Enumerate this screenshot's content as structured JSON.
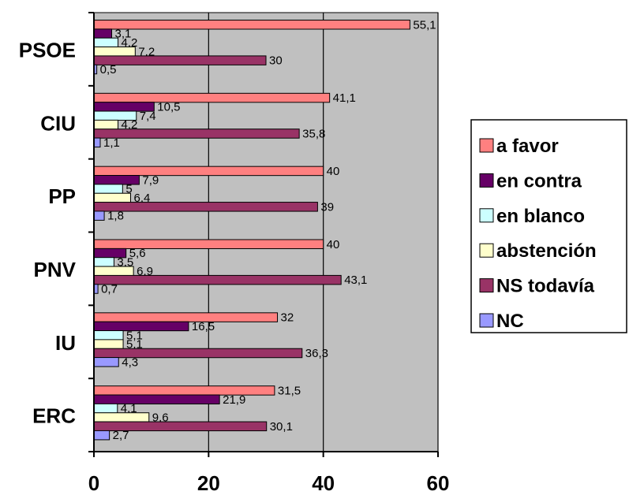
{
  "chart_data": {
    "type": "bar",
    "orientation": "horizontal",
    "categories": [
      "PSOE",
      "CIU",
      "PP",
      "PNV",
      "IU",
      "ERC"
    ],
    "series": [
      {
        "name": "a favor",
        "color": "#ff8080",
        "values": [
          55.1,
          41.1,
          40,
          40,
          32,
          31.5
        ],
        "labels": [
          "55,1",
          "41,1",
          "40",
          "40",
          "32",
          "31,5"
        ]
      },
      {
        "name": "en contra",
        "color": "#660066",
        "values": [
          3.1,
          10.5,
          7.9,
          5.6,
          16.5,
          21.9
        ],
        "labels": [
          "3,1",
          "10,5",
          "7,9",
          "5,6",
          "16,5",
          "21,9"
        ]
      },
      {
        "name": "en blanco",
        "color": "#ccffff",
        "values": [
          4.2,
          7.4,
          5,
          3.5,
          5.1,
          4.1
        ],
        "labels": [
          "4,2",
          "7,4",
          "5",
          "3,5",
          "5,1",
          "4,1"
        ]
      },
      {
        "name": "abstención",
        "color": "#ffffcc",
        "values": [
          7.2,
          4.2,
          6.4,
          6.9,
          5.1,
          9.6
        ],
        "labels": [
          "7,2",
          "4,2",
          "6,4",
          "6,9",
          "5,1",
          "9,6"
        ]
      },
      {
        "name": "NS todavía",
        "color": "#993366",
        "values": [
          30,
          35.8,
          39,
          43.1,
          36.3,
          30.1
        ],
        "labels": [
          "30",
          "35,8",
          "39",
          "43,1",
          "36,3",
          "30,1"
        ]
      },
      {
        "name": "NC",
        "color": "#9999ff",
        "values": [
          0.5,
          1.1,
          1.8,
          0.7,
          4.3,
          2.7
        ],
        "labels": [
          "0,5",
          "1,1",
          "1,8",
          "0,7",
          "4,3",
          "2,7"
        ]
      }
    ],
    "xlim": [
      0,
      60
    ],
    "xticks": [
      0,
      20,
      40,
      60
    ],
    "xtick_labels": [
      "0",
      "20",
      "40",
      "60"
    ],
    "grid": "vertical",
    "plot_background": "#c0c0c0",
    "legend_position": "right",
    "title": "",
    "xlabel": "",
    "ylabel": ""
  }
}
